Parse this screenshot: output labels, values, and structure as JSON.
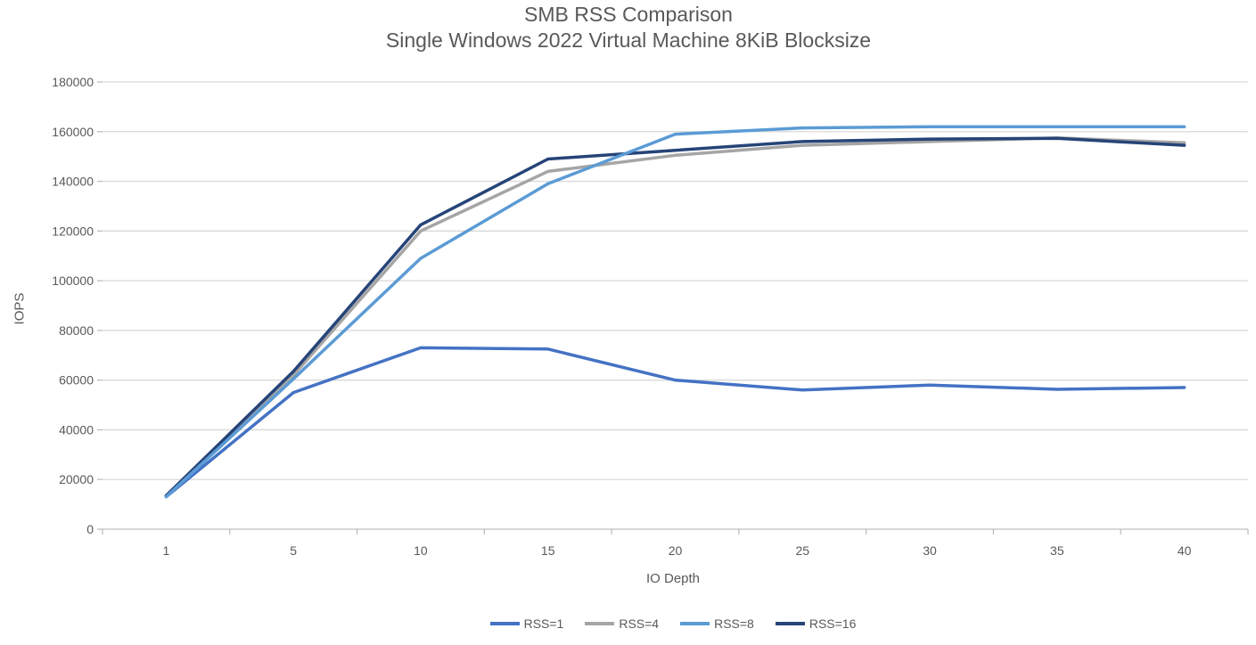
{
  "title": "SMB RSS Comparison",
  "subtitle": "Single Windows 2022 Virtual Machine 8KiB Blocksize",
  "axis": {
    "x_title": "IO Depth",
    "y_title": "IOPS"
  },
  "colors": {
    "text": "#595959",
    "gridline": "#D9D9D9",
    "axis_line": "#BFBFBF",
    "background": "#FFFFFF"
  },
  "chart_data": {
    "type": "line",
    "title": "SMB RSS Comparison",
    "subtitle": "Single Windows 2022 Virtual Machine 8KiB Blocksize",
    "xlabel": "IO Depth",
    "ylabel": "IOPS",
    "categories": [
      1,
      5,
      10,
      15,
      20,
      25,
      30,
      35,
      40
    ],
    "ylim": [
      0,
      180000
    ],
    "y_tick_step": 20000,
    "y_ticks": [
      0,
      20000,
      40000,
      60000,
      80000,
      100000,
      120000,
      140000,
      160000,
      180000
    ],
    "grid": "horizontal",
    "legend_position": "bottom",
    "series": [
      {
        "name": "RSS=1",
        "color": "#4472C4",
        "values": [
          13000,
          55000,
          73000,
          72500,
          60000,
          56000,
          58000,
          56300,
          57000
        ]
      },
      {
        "name": "RSS=4",
        "color": "#A5A5A5",
        "values": [
          13500,
          62000,
          120000,
          144000,
          150500,
          154500,
          156000,
          157500,
          155500
        ]
      },
      {
        "name": "RSS=8",
        "color": "#5B9BD5",
        "values": [
          13000,
          60500,
          109000,
          139000,
          159000,
          161500,
          162000,
          162000,
          162000
        ]
      },
      {
        "name": "RSS=16",
        "color": "#264478",
        "values": [
          13500,
          63500,
          122500,
          149000,
          152500,
          156000,
          157000,
          157300,
          154500
        ]
      }
    ]
  }
}
